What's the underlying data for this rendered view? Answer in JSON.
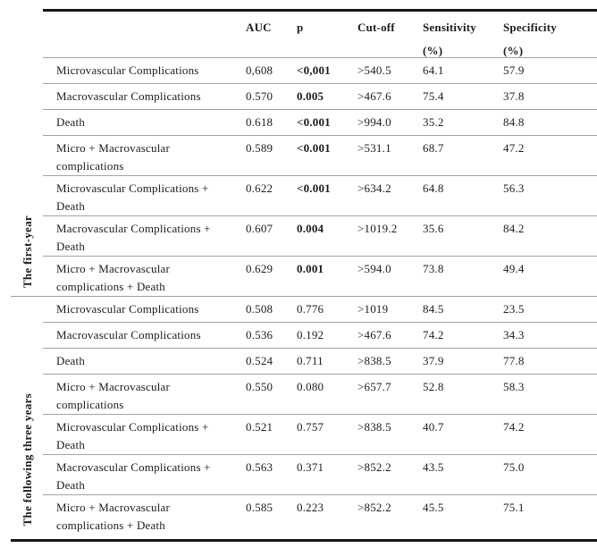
{
  "table": {
    "columns": {
      "auc": "AUC",
      "p": "p",
      "cutoff": "Cut-off",
      "sensitivity": "Sensitivity",
      "sensitivity_sub": "(%)",
      "specificity": "Specificity",
      "specificity_sub": "(%)"
    },
    "colors": {
      "strong_rule": "#161616",
      "light_rule": "#a3a3a3",
      "text": "#1c1c1c",
      "background": "#ffffff"
    },
    "sections": [
      {
        "name": "The first-year",
        "rows": [
          {
            "label": "Microvascular Complications",
            "auc": "0,608",
            "p": "<0,001",
            "cutoff": ">540.5",
            "sensitivity": "64.1",
            "specificity": "57.9"
          },
          {
            "label": "Macrovascular Complications",
            "auc": "0.570",
            "p": "0.005",
            "cutoff": ">467.6",
            "sensitivity": "75.4",
            "specificity": "37.8"
          },
          {
            "label": "Death",
            "auc": "0.618",
            "p": "<0.001",
            "cutoff": ">994.0",
            "sensitivity": "35.2",
            "specificity": "84.8"
          },
          {
            "label": "Micro + Macrovascular\ncomplications",
            "auc": "0.589",
            "p": "<0.001",
            "cutoff": ">531.1",
            "sensitivity": "68.7",
            "specificity": "47.2"
          },
          {
            "label": "Microvascular Complications +\nDeath",
            "auc": "0.622",
            "p": "<0.001",
            "cutoff": ">634.2",
            "sensitivity": "64.8",
            "specificity": "56.3"
          },
          {
            "label": "Macrovascular Complications +\nDeath",
            "auc": "0.607",
            "p": "0.004",
            "cutoff": ">1019.2",
            "sensitivity": "35.6",
            "specificity": "84.2"
          },
          {
            "label": "Micro + Macrovascular\ncomplications + Death",
            "auc": "0.629",
            "p": "0.001",
            "cutoff": ">594.0",
            "sensitivity": "73.8",
            "specificity": "49.4"
          }
        ]
      },
      {
        "name": "The following three years",
        "rows": [
          {
            "label": "Microvascular Complications",
            "auc": "0.508",
            "p": "0.776",
            "cutoff": ">1019",
            "sensitivity": "84.5",
            "specificity": "23.5"
          },
          {
            "label": "Macrovascular Complications",
            "auc": "0.536",
            "p": "0.192",
            "cutoff": ">467.6",
            "sensitivity": "74.2",
            "specificity": "34.3"
          },
          {
            "label": "Death",
            "auc": "0.524",
            "p": "0.711",
            "cutoff": ">838.5",
            "sensitivity": "37.9",
            "specificity": "77.8"
          },
          {
            "label": "Micro + Macrovascular\ncomplications",
            "auc": "0.550",
            "p": "0.080",
            "cutoff": ">657.7",
            "sensitivity": "52.8",
            "specificity": "58.3"
          },
          {
            "label": "Microvascular Complications +\nDeath",
            "auc": "0.521",
            "p": "0.757",
            "cutoff": ">838.5",
            "sensitivity": "40.7",
            "specificity": "74.2"
          },
          {
            "label": "Macrovascular Complications +\nDeath",
            "auc": "0.563",
            "p": "0.371",
            "cutoff": ">852.2",
            "sensitivity": "43.5",
            "specificity": "75.0"
          },
          {
            "label": "Micro + Macrovascular\ncomplications + Death",
            "auc": "0.585",
            "p": "0.223",
            "cutoff": ">852.2",
            "sensitivity": "45.5",
            "specificity": "75.1"
          }
        ]
      }
    ]
  }
}
